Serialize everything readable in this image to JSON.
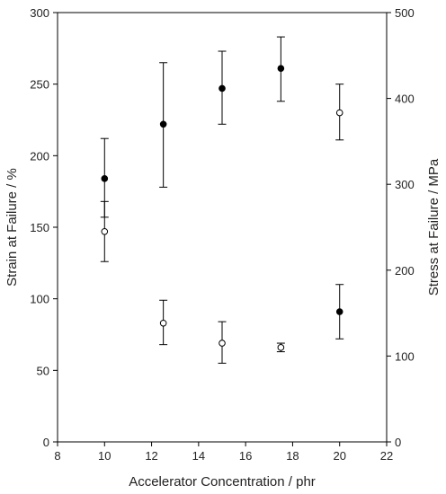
{
  "chart_data": {
    "type": "scatter",
    "title": "",
    "xlabel": "Accelerator Concentration / phr",
    "ylabel_left": "Strain at Failure / %",
    "ylabel_right": "Stress at Failure / MPa",
    "xlim": [
      8,
      22
    ],
    "ylim_left": [
      0,
      300
    ],
    "ylim_right": [
      0,
      500
    ],
    "x_ticks": [
      "8",
      "10",
      "12",
      "14",
      "16",
      "18",
      "20",
      "22"
    ],
    "y_left_ticks": [
      "0",
      "50",
      "100",
      "150",
      "200",
      "250",
      "300"
    ],
    "y_right_ticks": [
      "0",
      "100",
      "200",
      "300",
      "400",
      "500"
    ],
    "grid": false,
    "legend": "none",
    "series": [
      {
        "marker": "filled-circle",
        "color": "#000000",
        "points": [
          {
            "x": 10,
            "y": 184,
            "err_low": 157,
            "err_high": 212
          },
          {
            "x": 12.5,
            "y": 222,
            "err_low": 178,
            "err_high": 265
          },
          {
            "x": 15,
            "y": 247,
            "err_low": 222,
            "err_high": 273
          },
          {
            "x": 17.5,
            "y": 261,
            "err_low": 238,
            "err_high": 283
          },
          {
            "x": 20,
            "y": 91,
            "err_low": 72,
            "err_high": 110
          }
        ]
      },
      {
        "marker": "open-circle",
        "color": "#000000",
        "points": [
          {
            "x": 10,
            "y": 147,
            "err_low": 126,
            "err_high": 168
          },
          {
            "x": 12.5,
            "y": 83,
            "err_low": 68,
            "err_high": 99
          },
          {
            "x": 15,
            "y": 69,
            "err_low": 55,
            "err_high": 84
          },
          {
            "x": 17.5,
            "y": 66,
            "err_low": 63,
            "err_high": 69
          },
          {
            "x": 20,
            "y": 230,
            "err_low": 211,
            "err_high": 250
          }
        ]
      }
    ]
  }
}
